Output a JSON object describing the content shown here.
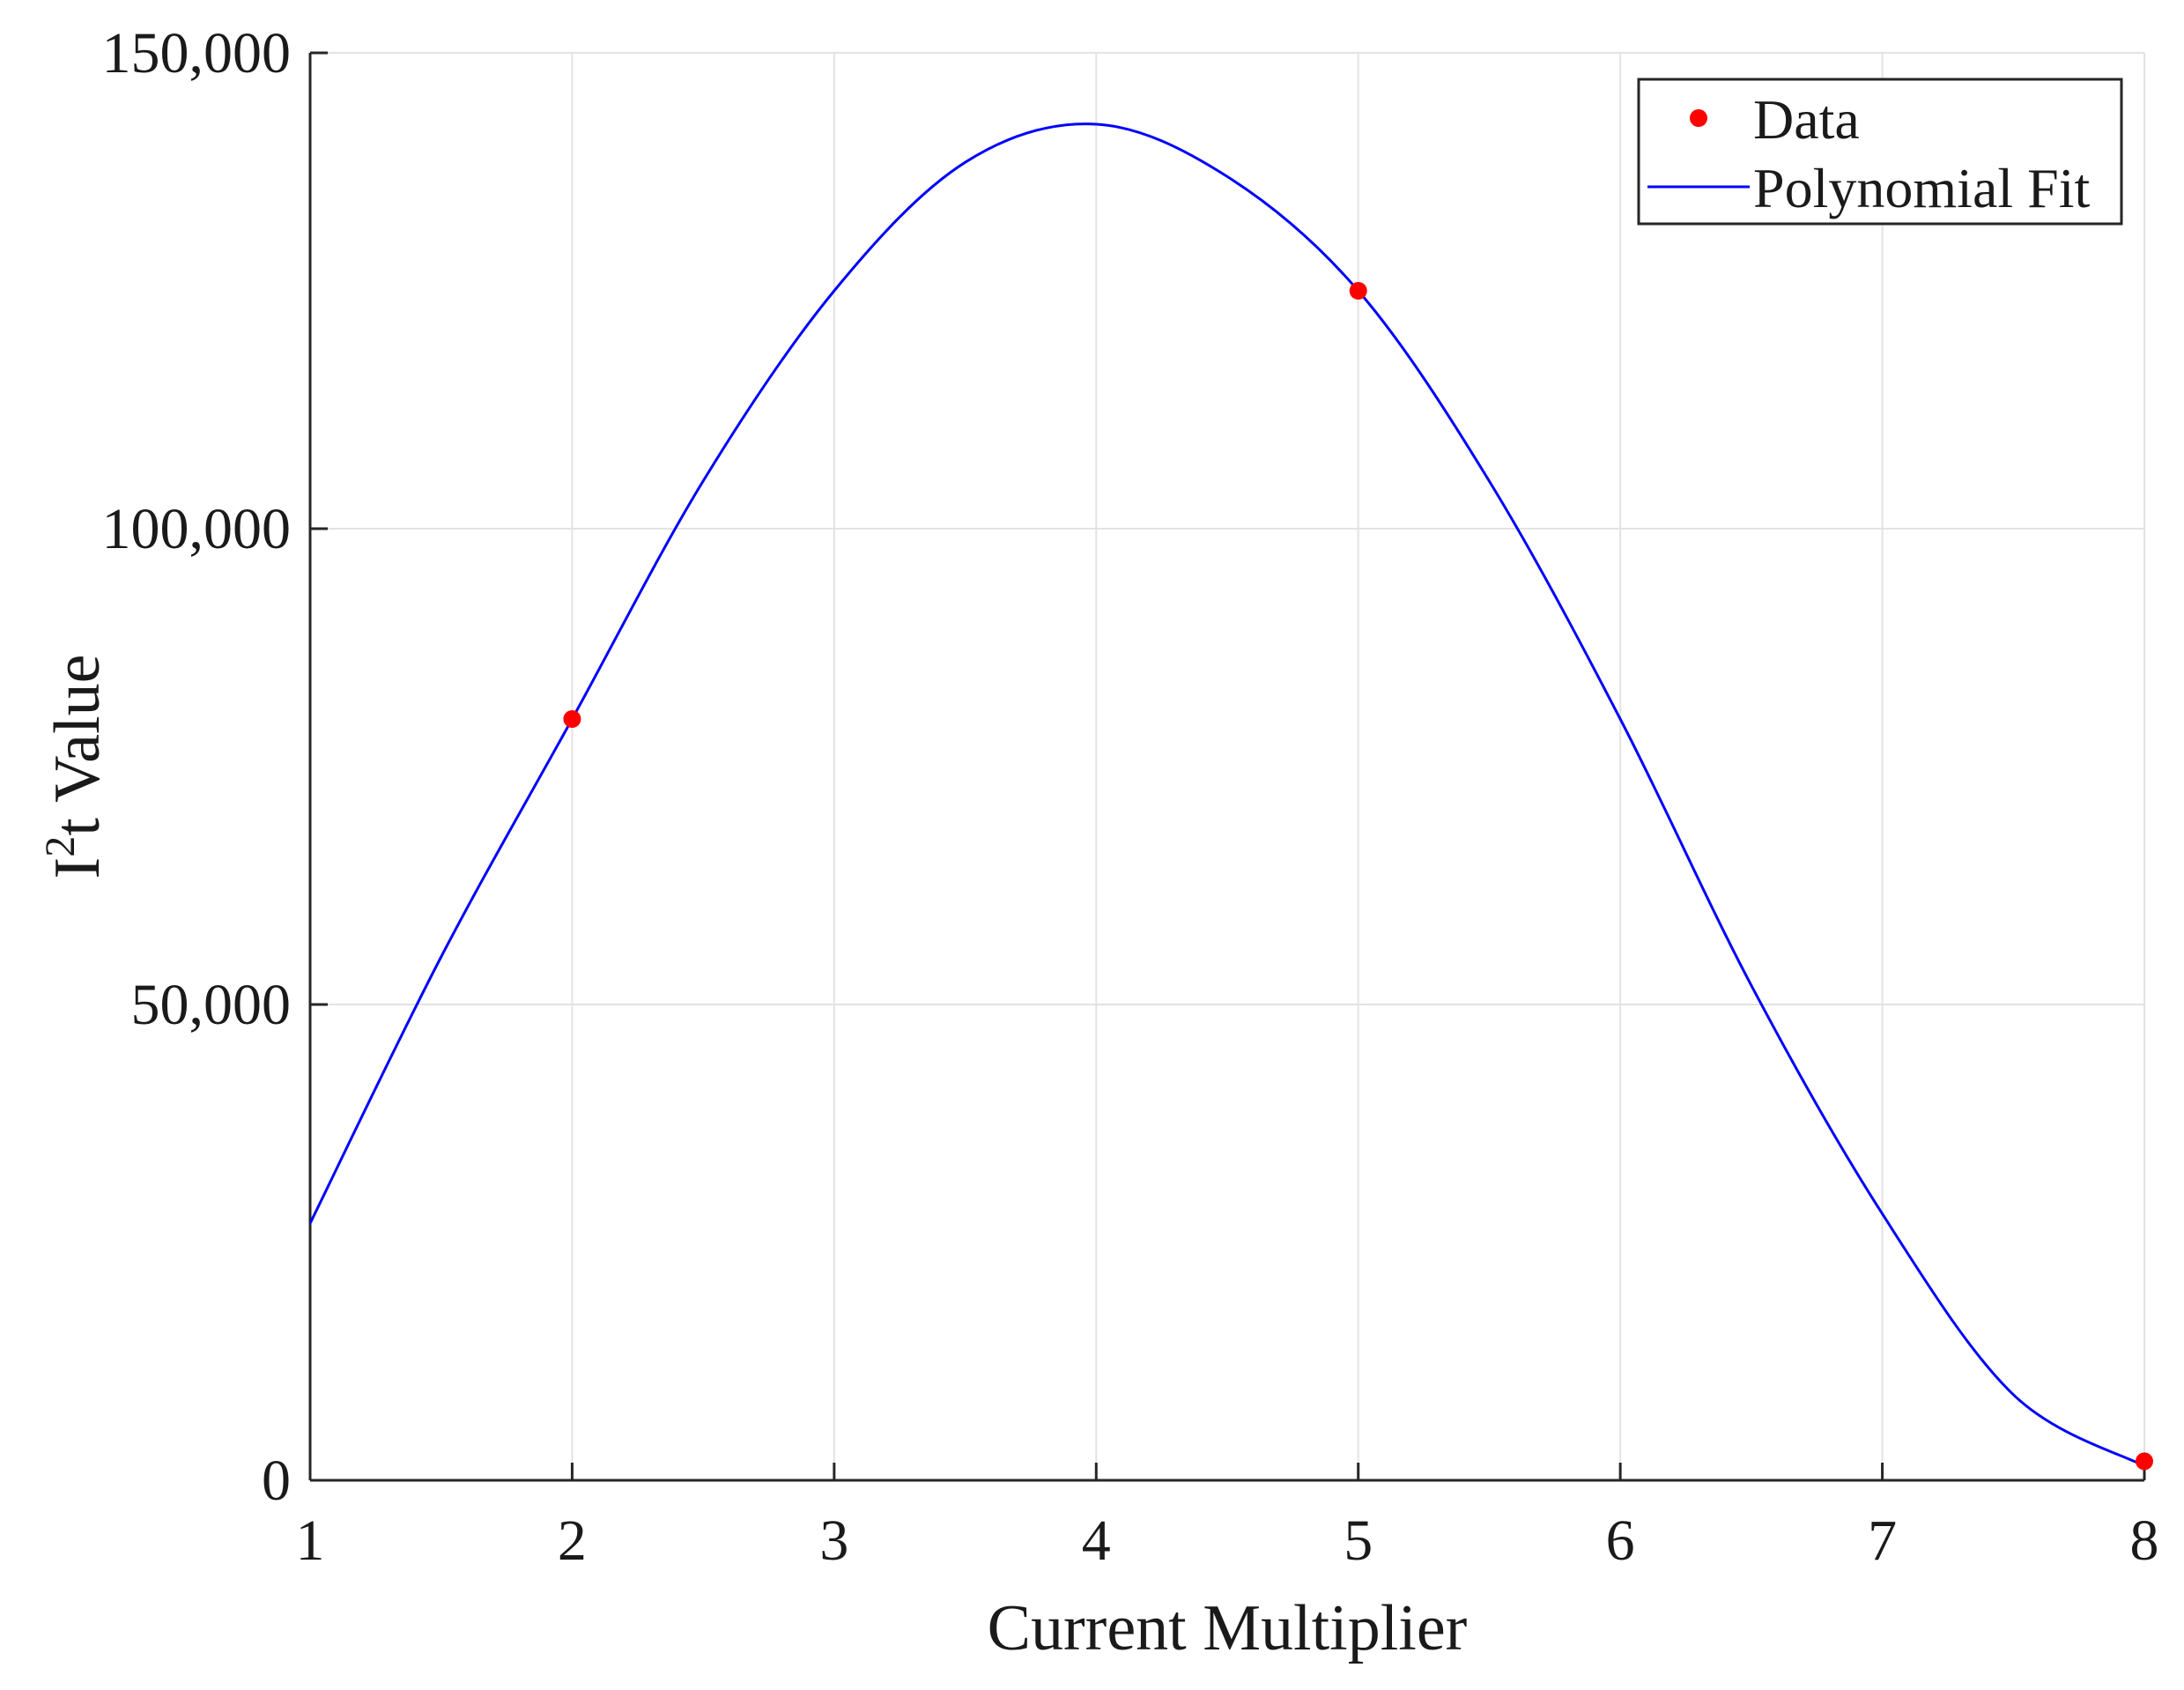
{
  "chart_data": {
    "type": "scatter",
    "xlabel": "Current Multiplier",
    "ylabel": {
      "base": "I",
      "superscript": "2",
      "rest": "t Value"
    },
    "xlim": [
      1,
      8
    ],
    "ylim": [
      0,
      150000
    ],
    "x_ticks": [
      1,
      2,
      3,
      4,
      5,
      6,
      7,
      8
    ],
    "x_tick_labels": [
      "1",
      "2",
      "3",
      "4",
      "5",
      "6",
      "7",
      "8"
    ],
    "y_ticks": [
      0,
      50000,
      100000,
      150000
    ],
    "y_tick_labels": [
      "0",
      "50,000",
      "100,000",
      "150,000"
    ],
    "grid": true,
    "legend_position": "top-right",
    "series": [
      {
        "name": "Data",
        "kind": "markers",
        "color": "#ff0000",
        "x": [
          2,
          5,
          8
        ],
        "y": [
          80000,
          125000,
          2000
        ]
      },
      {
        "name": "Polynomial Fit",
        "kind": "line",
        "color": "#0000ff",
        "x": [
          1,
          1.5,
          2,
          2.5,
          3,
          3.5,
          4,
          4.5,
          5,
          5.5,
          6,
          6.5,
          7,
          7.5,
          8
        ],
        "y": [
          27000,
          55000,
          80000,
          105000,
          125000,
          138500,
          142500,
          137000,
          125000,
          105000,
          80000,
          52000,
          28000,
          9000,
          1500
        ]
      }
    ]
  }
}
